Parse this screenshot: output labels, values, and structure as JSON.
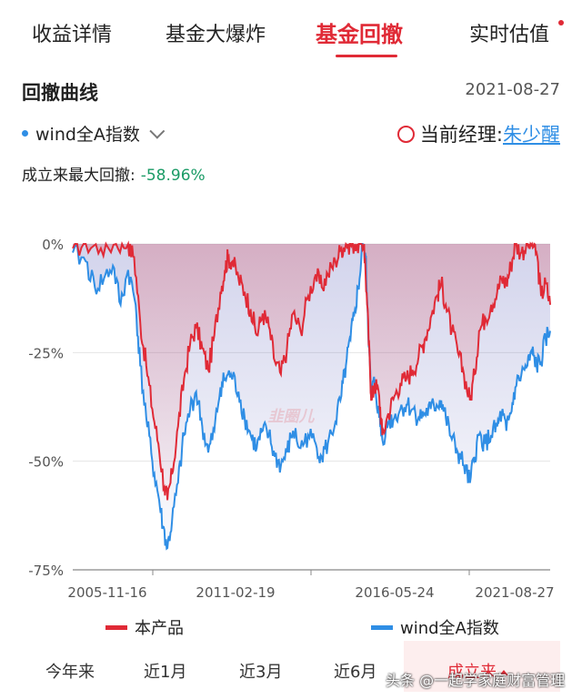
{
  "tabs": [
    "收益详情",
    "基金大爆炸",
    "基金回撤",
    "实时估值"
  ],
  "section_title": "回撤曲线",
  "date": "2021-08-27",
  "benchmark_label": "wind全A指数",
  "manager_label": "当前经理:",
  "manager_name": "朱少醒",
  "max_drawdown_label": "成立来最大回撤:",
  "max_drawdown_value": "-58.96%",
  "chart_watermark": "韭圈儿",
  "periods": [
    "今年来",
    "近1月",
    "近3月",
    "近6月",
    "成立来"
  ],
  "watermark": "头条 @一起学家庭财富管理",
  "colors": {
    "product": "#e02a36",
    "benchmark": "#2f8ee5",
    "accent": "#e02a36"
  },
  "chart_data": {
    "type": "area",
    "x_ticks": [
      "2005-11-16",
      "2011-02-19",
      "2016-05-24",
      "2021-08-27"
    ],
    "y_ticks": [
      "0%",
      "-25%",
      "-50%",
      "-75%"
    ],
    "ylim": [
      -75,
      0
    ],
    "xlim": [
      2005.87,
      2021.65
    ],
    "series": [
      {
        "name": "本产品",
        "color": "#e02a36",
        "points": [
          [
            2005.87,
            -1
          ],
          [
            2006.3,
            0
          ],
          [
            2006.8,
            -1
          ],
          [
            2007.3,
            0
          ],
          [
            2007.7,
            0
          ],
          [
            2007.9,
            -3
          ],
          [
            2008.1,
            -18
          ],
          [
            2008.3,
            -28
          ],
          [
            2008.5,
            -38
          ],
          [
            2008.7,
            -46
          ],
          [
            2008.9,
            -56
          ],
          [
            2009.0,
            -58.96
          ],
          [
            2009.15,
            -53
          ],
          [
            2009.35,
            -42
          ],
          [
            2009.55,
            -31
          ],
          [
            2009.75,
            -23
          ],
          [
            2009.95,
            -19
          ],
          [
            2010.15,
            -24
          ],
          [
            2010.35,
            -29
          ],
          [
            2010.55,
            -21
          ],
          [
            2010.75,
            -11
          ],
          [
            2010.9,
            -6
          ],
          [
            2011.0,
            -3
          ],
          [
            2011.15,
            -4
          ],
          [
            2011.35,
            -8
          ],
          [
            2011.55,
            -11
          ],
          [
            2011.75,
            -15
          ],
          [
            2011.95,
            -21
          ],
          [
            2012.15,
            -16
          ],
          [
            2012.35,
            -19
          ],
          [
            2012.55,
            -27
          ],
          [
            2012.75,
            -30
          ],
          [
            2012.95,
            -24
          ],
          [
            2013.15,
            -16
          ],
          [
            2013.4,
            -20
          ],
          [
            2013.65,
            -12
          ],
          [
            2013.9,
            -7
          ],
          [
            2014.1,
            -10
          ],
          [
            2014.3,
            -7
          ],
          [
            2014.55,
            -4
          ],
          [
            2014.75,
            -1
          ],
          [
            2014.9,
            0
          ],
          [
            2015.05,
            0
          ],
          [
            2015.2,
            0
          ],
          [
            2015.35,
            0
          ],
          [
            2015.5,
            0
          ],
          [
            2015.6,
            -14
          ],
          [
            2015.7,
            -30
          ],
          [
            2015.75,
            -36
          ],
          [
            2015.85,
            -32
          ],
          [
            2016.0,
            -35
          ],
          [
            2016.1,
            -44
          ],
          [
            2016.3,
            -39
          ],
          [
            2016.5,
            -35
          ],
          [
            2016.7,
            -32
          ],
          [
            2016.9,
            -31
          ],
          [
            2017.1,
            -29
          ],
          [
            2017.3,
            -26
          ],
          [
            2017.5,
            -22
          ],
          [
            2017.7,
            -17
          ],
          [
            2017.9,
            -12
          ],
          [
            2018.05,
            -9
          ],
          [
            2018.2,
            -14
          ],
          [
            2018.4,
            -20
          ],
          [
            2018.6,
            -25
          ],
          [
            2018.8,
            -30
          ],
          [
            2019.0,
            -36
          ],
          [
            2019.15,
            -30
          ],
          [
            2019.3,
            -20
          ],
          [
            2019.5,
            -17
          ],
          [
            2019.7,
            -14
          ],
          [
            2019.9,
            -11
          ],
          [
            2020.05,
            -8
          ],
          [
            2020.2,
            -9
          ],
          [
            2020.35,
            -5
          ],
          [
            2020.5,
            0
          ],
          [
            2020.7,
            -2
          ],
          [
            2020.9,
            0
          ],
          [
            2021.05,
            0
          ],
          [
            2021.2,
            -2
          ],
          [
            2021.35,
            -12
          ],
          [
            2021.5,
            -9
          ],
          [
            2021.65,
            -14
          ]
        ]
      },
      {
        "name": "wind全A指数",
        "color": "#2f8ee5",
        "points": [
          [
            2005.87,
            -2
          ],
          [
            2006.3,
            -4
          ],
          [
            2006.6,
            -10
          ],
          [
            2006.9,
            -8
          ],
          [
            2007.2,
            -5
          ],
          [
            2007.45,
            -14
          ],
          [
            2007.7,
            -6
          ],
          [
            2007.95,
            -14
          ],
          [
            2008.1,
            -28
          ],
          [
            2008.3,
            -40
          ],
          [
            2008.5,
            -50
          ],
          [
            2008.7,
            -58
          ],
          [
            2008.85,
            -65
          ],
          [
            2009.0,
            -70
          ],
          [
            2009.15,
            -64
          ],
          [
            2009.35,
            -55
          ],
          [
            2009.55,
            -44
          ],
          [
            2009.75,
            -38
          ],
          [
            2009.95,
            -34
          ],
          [
            2010.15,
            -42
          ],
          [
            2010.35,
            -48
          ],
          [
            2010.55,
            -43
          ],
          [
            2010.75,
            -33
          ],
          [
            2010.9,
            -31
          ],
          [
            2011.1,
            -30
          ],
          [
            2011.35,
            -34
          ],
          [
            2011.55,
            -40
          ],
          [
            2011.75,
            -44
          ],
          [
            2011.95,
            -47
          ],
          [
            2012.15,
            -43
          ],
          [
            2012.35,
            -44
          ],
          [
            2012.55,
            -49
          ],
          [
            2012.75,
            -51
          ],
          [
            2012.95,
            -48
          ],
          [
            2013.15,
            -43
          ],
          [
            2013.4,
            -47
          ],
          [
            2013.65,
            -44
          ],
          [
            2013.9,
            -46
          ],
          [
            2014.1,
            -49
          ],
          [
            2014.3,
            -46
          ],
          [
            2014.55,
            -41
          ],
          [
            2014.75,
            -35
          ],
          [
            2014.9,
            -28
          ],
          [
            2015.05,
            -22
          ],
          [
            2015.2,
            -15
          ],
          [
            2015.35,
            -8
          ],
          [
            2015.45,
            0
          ],
          [
            2015.55,
            -3
          ],
          [
            2015.62,
            -16
          ],
          [
            2015.72,
            -34
          ],
          [
            2015.85,
            -32
          ],
          [
            2016.0,
            -40
          ],
          [
            2016.1,
            -45
          ],
          [
            2016.3,
            -41
          ],
          [
            2016.5,
            -40
          ],
          [
            2016.7,
            -38
          ],
          [
            2016.9,
            -37
          ],
          [
            2017.1,
            -38
          ],
          [
            2017.3,
            -40
          ],
          [
            2017.5,
            -39
          ],
          [
            2017.7,
            -38
          ],
          [
            2017.9,
            -37
          ],
          [
            2018.05,
            -36
          ],
          [
            2018.2,
            -40
          ],
          [
            2018.4,
            -45
          ],
          [
            2018.6,
            -48
          ],
          [
            2018.8,
            -51
          ],
          [
            2019.0,
            -55
          ],
          [
            2019.15,
            -49
          ],
          [
            2019.3,
            -44
          ],
          [
            2019.5,
            -46
          ],
          [
            2019.7,
            -44
          ],
          [
            2019.9,
            -42
          ],
          [
            2020.05,
            -39
          ],
          [
            2020.2,
            -43
          ],
          [
            2020.35,
            -39
          ],
          [
            2020.5,
            -33
          ],
          [
            2020.7,
            -30
          ],
          [
            2020.9,
            -28
          ],
          [
            2021.05,
            -25
          ],
          [
            2021.2,
            -28
          ],
          [
            2021.35,
            -27
          ],
          [
            2021.5,
            -22
          ],
          [
            2021.65,
            -20
          ]
        ]
      }
    ]
  }
}
